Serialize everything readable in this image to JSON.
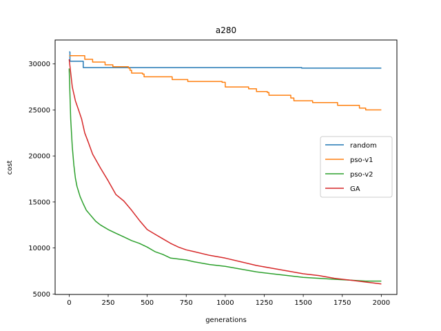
{
  "chart_data": {
    "type": "line",
    "title": "a280",
    "xlabel": "generations",
    "ylabel": "cost",
    "xlim": [
      -90,
      2100
    ],
    "ylim": [
      4950,
      32600
    ],
    "xticks": [
      0,
      250,
      500,
      750,
      1000,
      1250,
      1500,
      1750,
      2000
    ],
    "yticks": [
      5000,
      10000,
      15000,
      20000,
      25000,
      30000
    ],
    "grid": false,
    "legend_position": "center-right",
    "series": [
      {
        "name": "random",
        "color": "#1f77b4",
        "step": true,
        "points": [
          [
            0,
            31300
          ],
          [
            5,
            30300
          ],
          [
            90,
            29600
          ],
          [
            1490,
            29550
          ],
          [
            2000,
            29550
          ]
        ]
      },
      {
        "name": "pso-v1",
        "color": "#ff7f0e",
        "step": true,
        "points": [
          [
            0,
            30900
          ],
          [
            100,
            30500
          ],
          [
            150,
            30200
          ],
          [
            230,
            29900
          ],
          [
            280,
            29700
          ],
          [
            380,
            29550
          ],
          [
            390,
            29300
          ],
          [
            400,
            29000
          ],
          [
            470,
            28900
          ],
          [
            480,
            28600
          ],
          [
            660,
            28300
          ],
          [
            760,
            28100
          ],
          [
            980,
            28000
          ],
          [
            1000,
            27500
          ],
          [
            1150,
            27300
          ],
          [
            1200,
            27000
          ],
          [
            1270,
            26900
          ],
          [
            1280,
            26600
          ],
          [
            1420,
            26300
          ],
          [
            1440,
            26000
          ],
          [
            1560,
            25800
          ],
          [
            1720,
            25500
          ],
          [
            1860,
            25200
          ],
          [
            1900,
            25000
          ],
          [
            2000,
            25000
          ]
        ]
      },
      {
        "name": "pso-v2",
        "color": "#2ca02c",
        "step": false,
        "points": [
          [
            0,
            29500
          ],
          [
            10,
            24000
          ],
          [
            20,
            21000
          ],
          [
            30,
            19000
          ],
          [
            40,
            17600
          ],
          [
            50,
            16700
          ],
          [
            70,
            15600
          ],
          [
            90,
            14800
          ],
          [
            110,
            14100
          ],
          [
            130,
            13700
          ],
          [
            150,
            13300
          ],
          [
            170,
            12900
          ],
          [
            200,
            12500
          ],
          [
            250,
            12000
          ],
          [
            300,
            11600
          ],
          [
            350,
            11200
          ],
          [
            400,
            10800
          ],
          [
            450,
            10500
          ],
          [
            500,
            10100
          ],
          [
            550,
            9600
          ],
          [
            600,
            9300
          ],
          [
            650,
            8900
          ],
          [
            700,
            8800
          ],
          [
            750,
            8700
          ],
          [
            800,
            8500
          ],
          [
            900,
            8200
          ],
          [
            1000,
            8000
          ],
          [
            1100,
            7700
          ],
          [
            1200,
            7400
          ],
          [
            1300,
            7200
          ],
          [
            1400,
            7000
          ],
          [
            1500,
            6800
          ],
          [
            1600,
            6700
          ],
          [
            1700,
            6600
          ],
          [
            1800,
            6500
          ],
          [
            1900,
            6400
          ],
          [
            2000,
            6400
          ]
        ]
      },
      {
        "name": "GA",
        "color": "#d62728",
        "step": false,
        "points": [
          [
            0,
            30500
          ],
          [
            20,
            27500
          ],
          [
            40,
            26000
          ],
          [
            60,
            25000
          ],
          [
            80,
            24000
          ],
          [
            100,
            22500
          ],
          [
            120,
            21600
          ],
          [
            150,
            20200
          ],
          [
            200,
            18700
          ],
          [
            250,
            17300
          ],
          [
            300,
            15800
          ],
          [
            350,
            15100
          ],
          [
            400,
            14100
          ],
          [
            450,
            13000
          ],
          [
            500,
            12000
          ],
          [
            550,
            11500
          ],
          [
            600,
            11000
          ],
          [
            650,
            10500
          ],
          [
            700,
            10100
          ],
          [
            750,
            9800
          ],
          [
            800,
            9600
          ],
          [
            900,
            9200
          ],
          [
            1000,
            8900
          ],
          [
            1100,
            8500
          ],
          [
            1200,
            8100
          ],
          [
            1300,
            7800
          ],
          [
            1400,
            7500
          ],
          [
            1500,
            7200
          ],
          [
            1600,
            7000
          ],
          [
            1700,
            6700
          ],
          [
            1800,
            6500
          ],
          [
            1900,
            6300
          ],
          [
            2000,
            6100
          ]
        ]
      }
    ]
  }
}
